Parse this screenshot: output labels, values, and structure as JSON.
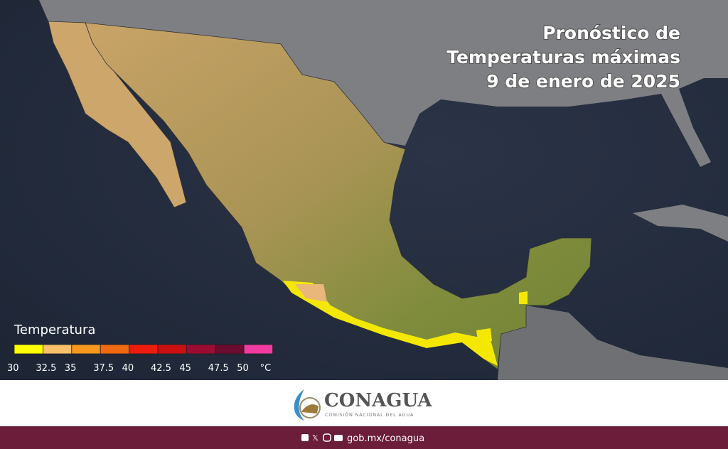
{
  "map": {
    "title": [
      "Pronóstico de",
      "Temperaturas máximas",
      "9 de enero de 2025"
    ],
    "legend": {
      "title": "Temperatura",
      "ticks": [
        30,
        32.5,
        35,
        37.5,
        40,
        42.5,
        45,
        47.5,
        50
      ],
      "unit": "°C",
      "colors": [
        "#ffff00",
        "#f9c06a",
        "#f5981d",
        "#ef6a12",
        "#ee1c0e",
        "#c90f10",
        "#9c0c32",
        "#6a0b2f",
        "#f23ba0"
      ]
    }
  },
  "footer": {
    "logo": "CONAGUA",
    "logo_subtitle": "COMISIÓN NACIONAL DEL AGUA",
    "link": "gob.mx/conagua"
  }
}
